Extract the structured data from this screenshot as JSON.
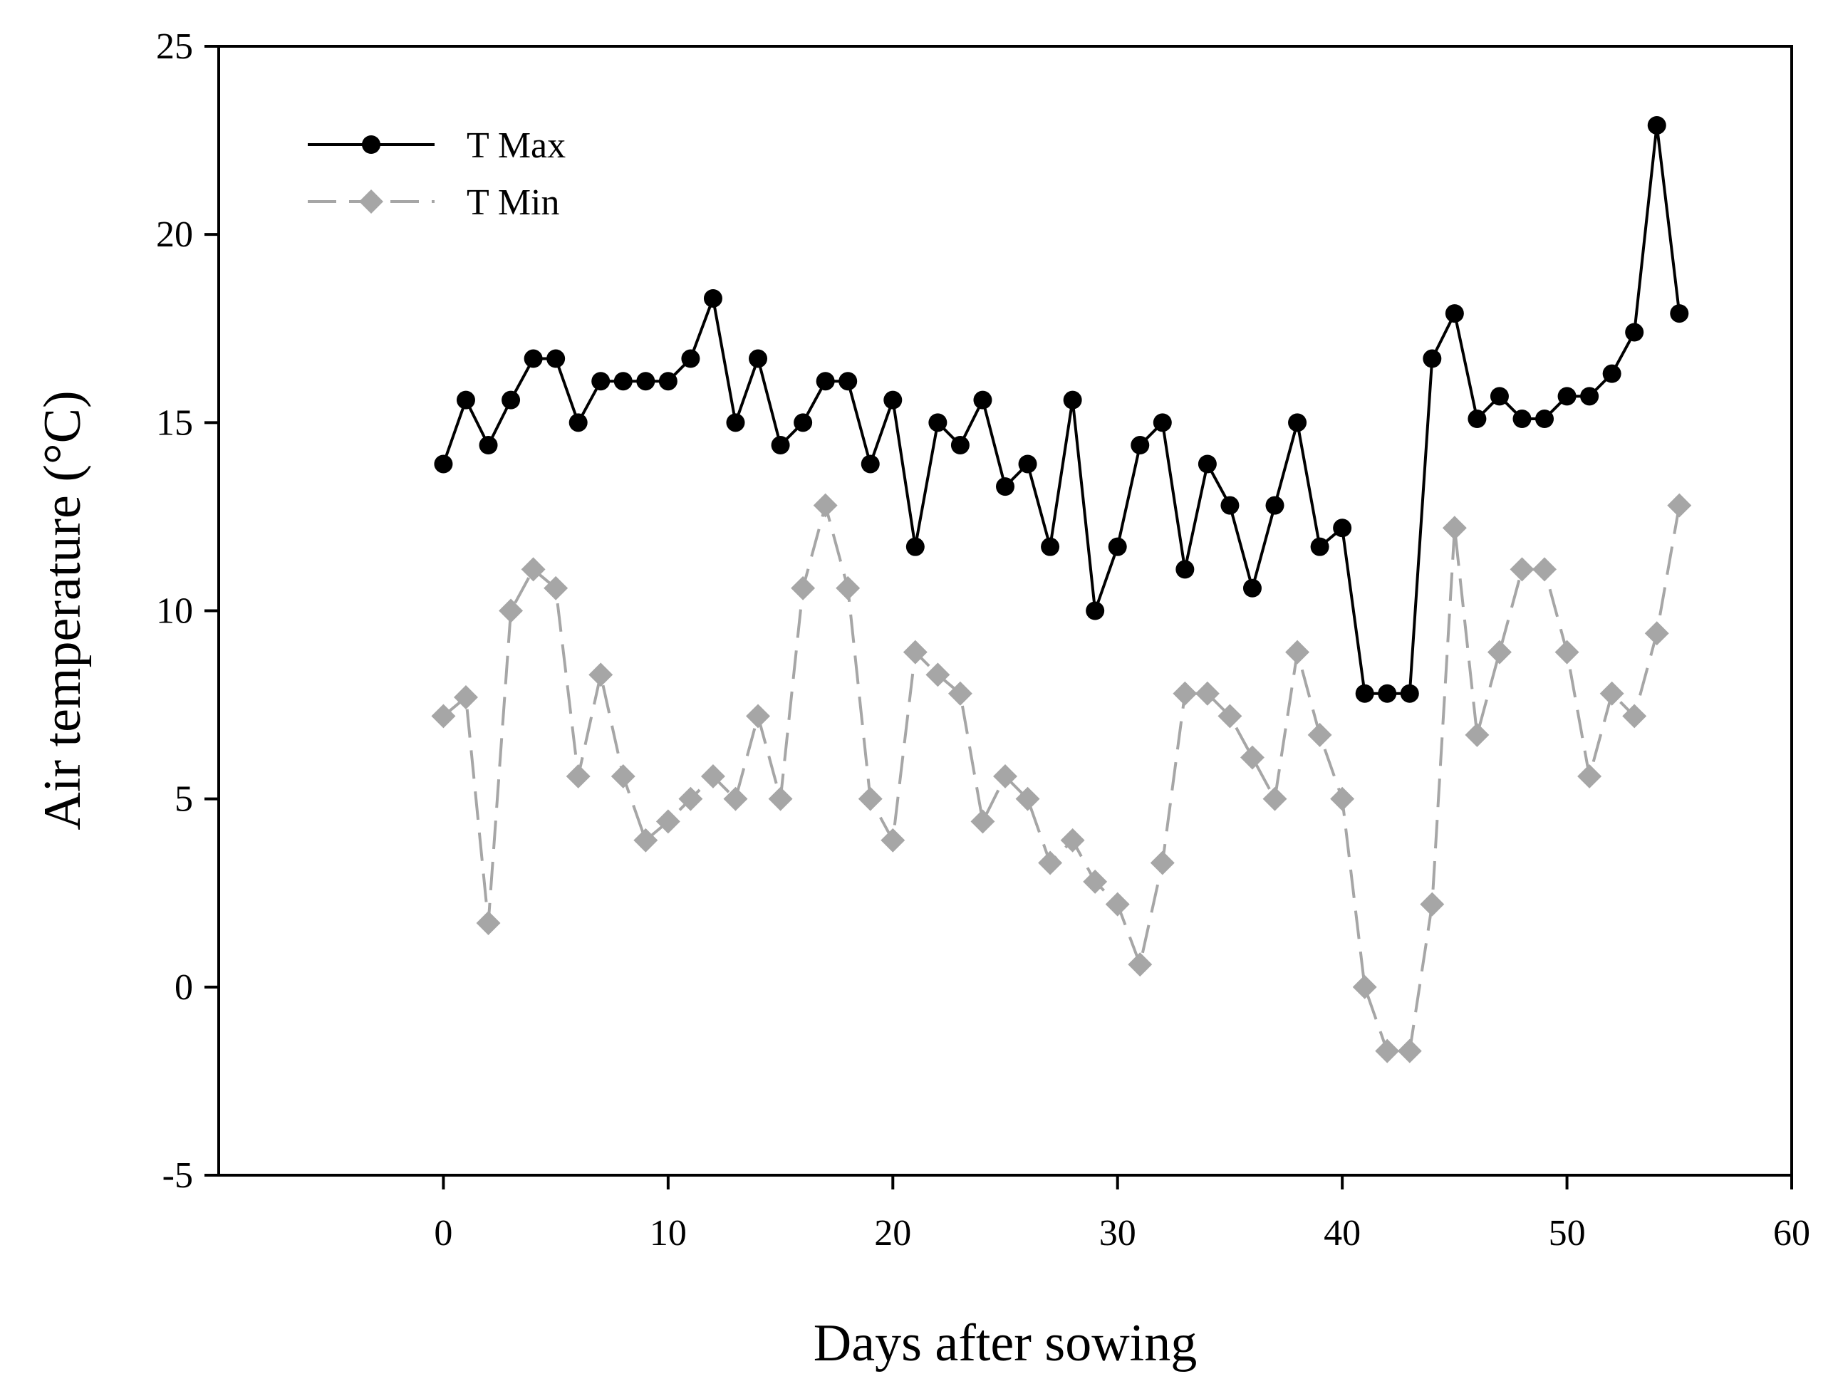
{
  "chart_data": {
    "type": "line",
    "title": "",
    "xlabel": "Days after sowing",
    "ylabel": "Air temperature (°C)",
    "xlim": [
      -10,
      60
    ],
    "ylim": [
      -5,
      25
    ],
    "xticks": [
      0,
      10,
      20,
      30,
      40,
      50,
      60
    ],
    "yticks": [
      -5,
      0,
      5,
      10,
      15,
      20,
      25
    ],
    "xtick_labels": [
      "0",
      "10",
      "20",
      "30",
      "40",
      "50",
      "60"
    ],
    "ytick_labels": [
      "-5",
      "0",
      "5",
      "10",
      "15",
      "20",
      "25"
    ],
    "grid": false,
    "legend_position": "top-left",
    "x": [
      0,
      1,
      2,
      3,
      4,
      5,
      6,
      7,
      8,
      9,
      10,
      11,
      12,
      13,
      14,
      15,
      16,
      17,
      18,
      19,
      20,
      21,
      22,
      23,
      24,
      25,
      26,
      27,
      28,
      29,
      30,
      31,
      32,
      33,
      34,
      35,
      36,
      37,
      38,
      39,
      40,
      41,
      42,
      43,
      44,
      45,
      46,
      47,
      48,
      49,
      50,
      51,
      52,
      53,
      54,
      55
    ],
    "series": [
      {
        "name": "T Max",
        "color": "#000000",
        "line_style": "solid",
        "marker": "circle",
        "values": [
          13.9,
          15.6,
          14.4,
          15.6,
          16.7,
          16.7,
          15.0,
          16.1,
          16.1,
          16.1,
          16.1,
          16.7,
          18.3,
          15.0,
          16.7,
          14.4,
          15.0,
          16.1,
          16.1,
          13.9,
          15.6,
          11.7,
          15.0,
          14.4,
          15.6,
          13.3,
          13.9,
          11.7,
          15.6,
          10.0,
          11.7,
          14.4,
          15.0,
          11.1,
          13.9,
          12.8,
          10.6,
          12.8,
          15.0,
          11.7,
          12.2,
          7.8,
          7.8,
          7.8,
          16.7,
          17.9,
          15.1,
          15.7,
          15.1,
          15.1,
          15.7,
          15.7,
          16.3,
          17.4,
          22.9,
          17.9
        ]
      },
      {
        "name": "T Min",
        "color": "#a6a6a6",
        "line_style": "dashed",
        "marker": "diamond",
        "values": [
          7.2,
          7.7,
          1.7,
          10.0,
          11.1,
          10.6,
          5.6,
          8.3,
          5.6,
          3.9,
          4.4,
          5.0,
          5.6,
          5.0,
          7.2,
          5.0,
          10.6,
          12.8,
          10.6,
          5.0,
          3.9,
          8.9,
          8.3,
          7.8,
          4.4,
          5.6,
          5.0,
          3.3,
          3.9,
          2.8,
          2.2,
          0.6,
          3.3,
          7.8,
          7.8,
          7.2,
          6.1,
          5.0,
          8.9,
          6.7,
          5.0,
          0.0,
          -1.7,
          -1.7,
          2.2,
          12.2,
          6.7,
          8.9,
          11.1,
          11.1,
          8.9,
          5.6,
          7.8,
          7.2,
          9.4,
          12.8
        ]
      }
    ]
  }
}
